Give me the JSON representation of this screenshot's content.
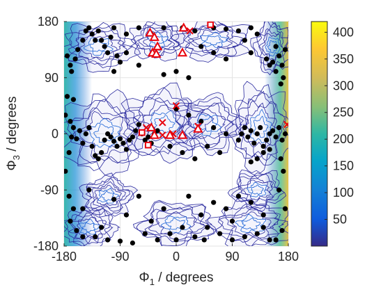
{
  "chart_data": {
    "type": "contour-scatter",
    "xlabel": "Φ",
    "xlabel_sub": "1",
    "xlabel_suffix": " / degrees",
    "ylabel": "Φ",
    "ylabel_sub": "3",
    "ylabel_suffix": " / degrees",
    "xlim": [
      -180,
      180
    ],
    "ylim": [
      -180,
      180
    ],
    "xticks": [
      -180,
      -90,
      0,
      90,
      180
    ],
    "yticks": [
      -180,
      -90,
      0,
      90,
      180
    ],
    "grid": true,
    "colorbar": {
      "range": [
        0,
        420
      ],
      "ticks": [
        50,
        100,
        150,
        200,
        250,
        300,
        350,
        400
      ],
      "colormap": "parula"
    },
    "contour_color": "#2a2a9e",
    "contour_regions": [
      {
        "x": -125,
        "y": 140,
        "rx": 55,
        "ry": 35
      },
      {
        "x": -30,
        "y": 150,
        "rx": 40,
        "ry": 30
      },
      {
        "x": 60,
        "y": 150,
        "rx": 55,
        "ry": 30
      },
      {
        "x": 155,
        "y": 140,
        "rx": 30,
        "ry": 40
      },
      {
        "x": -115,
        "y": 0,
        "rx": 65,
        "ry": 60
      },
      {
        "x": -20,
        "y": 15,
        "rx": 65,
        "ry": 55
      },
      {
        "x": 50,
        "y": 15,
        "rx": 55,
        "ry": 45
      },
      {
        "x": 135,
        "y": 10,
        "rx": 45,
        "ry": 65
      },
      {
        "x": -140,
        "y": -150,
        "rx": 40,
        "ry": 30
      },
      {
        "x": 0,
        "y": -145,
        "rx": 60,
        "ry": 35
      },
      {
        "x": 120,
        "y": -145,
        "rx": 60,
        "ry": 35
      },
      {
        "x": -110,
        "y": -100,
        "rx": 40,
        "ry": 30
      },
      {
        "x": 130,
        "y": -90,
        "rx": 40,
        "ry": 30
      }
    ],
    "black_points": [
      [
        -172,
        -30
      ],
      [
        -168,
        -5
      ],
      [
        -165,
        10
      ],
      [
        -160,
        -8
      ],
      [
        -155,
        5
      ],
      [
        -150,
        -15
      ],
      [
        -145,
        0
      ],
      [
        -140,
        10
      ],
      [
        -135,
        -20
      ],
      [
        -130,
        -35
      ],
      [
        -125,
        -40
      ],
      [
        -120,
        -30
      ],
      [
        -115,
        -10
      ],
      [
        -110,
        0
      ],
      [
        -105,
        -5
      ],
      [
        -100,
        -12
      ],
      [
        -95,
        -20
      ],
      [
        -90,
        -8
      ],
      [
        -85,
        -15
      ],
      [
        -80,
        -25
      ],
      [
        -75,
        -10
      ],
      [
        -70,
        -5
      ],
      [
        -65,
        5
      ],
      [
        -60,
        15
      ],
      [
        -55,
        0
      ],
      [
        -50,
        -10
      ],
      [
        -45,
        -5
      ],
      [
        -40,
        -15
      ],
      [
        -35,
        0
      ],
      [
        -30,
        5
      ],
      [
        -175,
        125
      ],
      [
        -170,
        110
      ],
      [
        -168,
        100
      ],
      [
        -162,
        120
      ],
      [
        -158,
        135
      ],
      [
        -150,
        150
      ],
      [
        -145,
        165
      ],
      [
        -140,
        170
      ],
      [
        -135,
        160
      ],
      [
        -130,
        150
      ],
      [
        -125,
        165
      ],
      [
        -120,
        150
      ],
      [
        -115,
        140
      ],
      [
        -110,
        130
      ],
      [
        -105,
        155
      ],
      [
        -100,
        170
      ],
      [
        -95,
        125
      ],
      [
        -90,
        115
      ],
      [
        -80,
        160
      ],
      [
        -60,
        170
      ],
      [
        -40,
        160
      ],
      [
        -20,
        170
      ],
      [
        10,
        170
      ],
      [
        30,
        165
      ],
      [
        60,
        170
      ],
      [
        80,
        168
      ],
      [
        100,
        165
      ],
      [
        110,
        150
      ],
      [
        120,
        170
      ],
      [
        130,
        160
      ],
      [
        145,
        120
      ],
      [
        150,
        110
      ],
      [
        155,
        115
      ],
      [
        160,
        100
      ],
      [
        165,
        125
      ],
      [
        170,
        110
      ],
      [
        172,
        90
      ],
      [
        168,
        80
      ],
      [
        175,
        135
      ],
      [
        160,
        140
      ],
      [
        100,
        -10
      ],
      [
        105,
        0
      ],
      [
        110,
        10
      ],
      [
        115,
        -5
      ],
      [
        120,
        5
      ],
      [
        125,
        -15
      ],
      [
        130,
        0
      ],
      [
        135,
        10
      ],
      [
        140,
        -20
      ],
      [
        145,
        -10
      ],
      [
        150,
        0
      ],
      [
        155,
        5
      ],
      [
        160,
        -5
      ],
      [
        165,
        10
      ],
      [
        170,
        -10
      ],
      [
        175,
        0
      ],
      [
        150,
        -25
      ],
      [
        140,
        -30
      ],
      [
        130,
        -40
      ],
      [
        120,
        -45
      ],
      [
        -178,
        30
      ],
      [
        -170,
        20
      ],
      [
        -175,
        60
      ],
      [
        -165,
        55
      ],
      [
        -178,
        -60
      ],
      [
        -172,
        -100
      ],
      [
        -165,
        -120
      ],
      [
        -170,
        -140
      ],
      [
        -160,
        -155
      ],
      [
        -150,
        -165
      ],
      [
        -130,
        -165
      ],
      [
        -110,
        -170
      ],
      [
        -90,
        -172
      ],
      [
        -70,
        -175
      ],
      [
        -50,
        -160
      ],
      [
        -30,
        -170
      ],
      [
        -10,
        -160
      ],
      [
        10,
        -150
      ],
      [
        30,
        -165
      ],
      [
        50,
        -150
      ],
      [
        70,
        -160
      ],
      [
        90,
        -170
      ],
      [
        110,
        -165
      ],
      [
        130,
        -160
      ],
      [
        150,
        -170
      ],
      [
        170,
        -155
      ],
      [
        175,
        -120
      ],
      [
        165,
        -90
      ],
      [
        172,
        -60
      ],
      [
        168,
        -40
      ],
      [
        -100,
        -105
      ],
      [
        -60,
        -100
      ],
      [
        -20,
        -120
      ],
      [
        20,
        -100
      ],
      [
        40,
        -130
      ],
      [
        60,
        -110
      ],
      [
        80,
        -120
      ],
      [
        100,
        -100
      ],
      [
        120,
        -110
      ],
      [
        140,
        -130
      ],
      [
        -120,
        -150
      ],
      [
        -80,
        -130
      ],
      [
        -40,
        -140
      ],
      [
        0,
        -170
      ],
      [
        45,
        -170
      ],
      [
        90,
        -140
      ],
      [
        140,
        -150
      ],
      [
        160,
        -170
      ],
      [
        -150,
        -120
      ],
      [
        -140,
        -90
      ],
      [
        0,
        40
      ],
      [
        20,
        30
      ],
      [
        40,
        20
      ],
      [
        60,
        10
      ],
      [
        80,
        0
      ],
      [
        -10,
        -20
      ],
      [
        10,
        -30
      ],
      [
        30,
        -40
      ],
      [
        50,
        -20
      ],
      [
        70,
        -30
      ],
      [
        -20,
        95
      ],
      [
        0,
        100
      ],
      [
        20,
        90
      ],
      [
        -60,
        110
      ],
      [
        -80,
        130
      ],
      [
        -100,
        100
      ],
      [
        80,
        120
      ],
      [
        60,
        130
      ],
      [
        40,
        140
      ],
      [
        120,
        130
      ]
    ],
    "red_crosses": [
      [
        22,
        165
      ],
      [
        -22,
        18
      ],
      [
        -22,
        -2
      ],
      [
        -48,
        10
      ],
      [
        0,
        45
      ],
      [
        35,
        12
      ],
      [
        -5,
        0
      ],
      [
        178,
        15
      ]
    ],
    "red_triangles": [
      [
        -42,
        162
      ],
      [
        -35,
        155
      ],
      [
        -30,
        140
      ],
      [
        -38,
        130
      ],
      [
        -32,
        128
      ],
      [
        10,
        130
      ],
      [
        12,
        170
      ],
      [
        -40,
        10
      ],
      [
        -35,
        -2
      ],
      [
        -10,
        -2
      ],
      [
        35,
        8
      ],
      [
        10,
        -2
      ]
    ],
    "red_squares": [
      [
        55,
        175
      ],
      [
        -55,
        2
      ],
      [
        -45,
        -18
      ]
    ]
  }
}
